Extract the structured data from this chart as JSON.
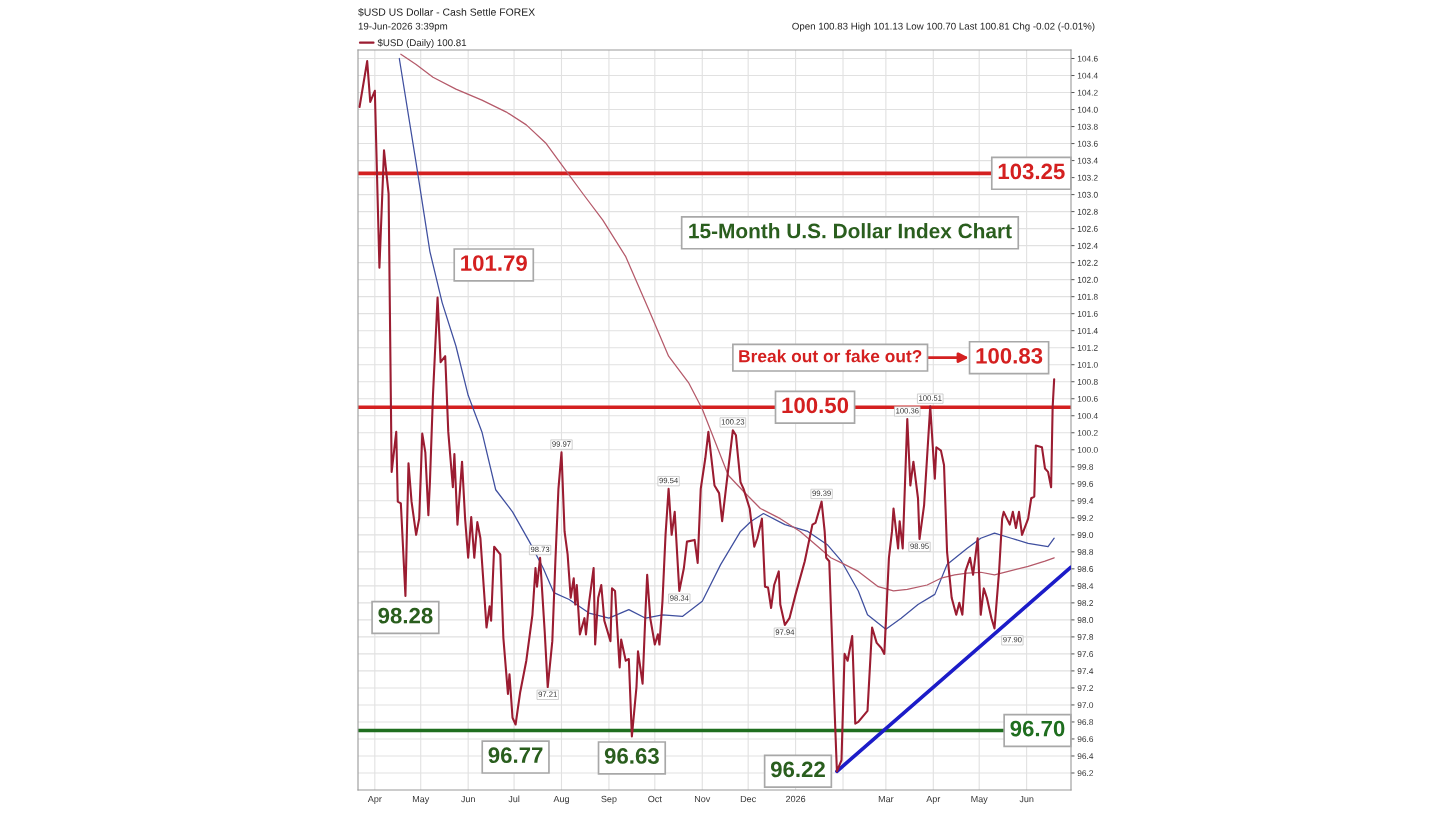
{
  "chart_data": {
    "type": "line",
    "title": "15-Month U.S. Dollar Index Chart",
    "subtitle": "$USD US Dollar - Cash Settle FOREX",
    "annotations": [
      "19-Jun-2026 3:39pm",
      "Open 100.83 High 101.13 Low 100.70 Last 100.81 Chg -0.02 (-0.01%)",
      "Break out or fake out?",
      {
        "text": "98.28",
        "x": "2025-04-21",
        "y": 98.28
      },
      {
        "text": "101.79",
        "x": "2025-05-12",
        "y": 101.79
      },
      {
        "text": "96.77",
        "x": "2025-07-02",
        "y": 96.77
      },
      {
        "text": "96.63",
        "x": "2025-09-16",
        "y": 96.63
      },
      {
        "text": "96.22",
        "x": "2026-01-28",
        "y": 96.22
      },
      {
        "text": "100.83",
        "x": "2026-06-19",
        "y": 100.83
      }
    ],
    "xlim": [
      "2025-03-21",
      "2026-06-30"
    ],
    "xticks": [
      {
        "value": "2025-04-01",
        "label": "Apr"
      },
      {
        "value": "2025-05-01",
        "label": "May"
      },
      {
        "value": "2025-06-01",
        "label": "Jun"
      },
      {
        "value": "2025-07-01",
        "label": "Jul"
      },
      {
        "value": "2025-08-01",
        "label": "Aug"
      },
      {
        "value": "2025-09-01",
        "label": "Sep"
      },
      {
        "value": "2025-10-01",
        "label": "Oct"
      },
      {
        "value": "2025-11-01",
        "label": "Nov"
      },
      {
        "value": "2025-12-01",
        "label": "Dec"
      },
      {
        "value": "2026-01-01",
        "label": "2026"
      },
      {
        "value": "2026-02-01",
        "label": null
      },
      {
        "value": "2026-03-01",
        "label": "Mar"
      },
      {
        "value": "2026-04-01",
        "label": "Apr"
      },
      {
        "value": "2026-05-01",
        "label": "May"
      },
      {
        "value": "2026-06-01",
        "label": "Jun"
      }
    ],
    "ylim": [
      96.0,
      104.7
    ],
    "yticks": [
      96.2,
      96.4,
      96.6,
      96.8,
      {
        "value": 97,
        "label": "97.0"
      },
      97.2,
      97.4,
      97.6,
      97.8,
      {
        "value": 98,
        "label": "98.0"
      },
      98.2,
      98.4,
      98.6,
      98.8,
      {
        "value": 99,
        "label": "99.0"
      },
      99.2,
      99.4,
      99.6,
      99.8,
      {
        "value": 100,
        "label": "100.0"
      },
      100.2,
      100.4,
      100.6,
      100.8,
      {
        "value": 101,
        "label": "101.0"
      },
      101.2,
      101.4,
      101.6,
      101.8,
      {
        "value": 102,
        "label": "102.0"
      },
      102.2,
      102.4,
      102.6,
      102.8,
      {
        "value": 103,
        "label": "103.0"
      },
      103.2,
      103.4,
      103.6,
      103.8,
      {
        "value": 104,
        "label": "104.0"
      },
      104.2,
      104.4,
      104.6
    ],
    "grid": true,
    "legend": "top left",
    "ref_lines": [
      {
        "axis": "y",
        "value": 103.25,
        "label": "103.25",
        "color": "#d42020"
      },
      {
        "axis": "y",
        "value": 100.5,
        "label": "100.50",
        "color": "#d42020"
      },
      {
        "axis": "y",
        "value": 96.7,
        "label": "96.70",
        "color": "#1f6e1f"
      }
    ],
    "series": [
      {
        "name": "$USD (Daily) 100.81",
        "color": "#9b1c31",
        "x": [
          "2025-03-22",
          "2025-03-27",
          "2025-03-29",
          "2025-04-01",
          "2025-04-04",
          "2025-04-07",
          "2025-04-10",
          "2025-04-12",
          "2025-04-15",
          "2025-04-16",
          "2025-04-18",
          "2025-04-21",
          "2025-04-23",
          "2025-04-25",
          "2025-04-28",
          "2025-04-30",
          "2025-05-02",
          "2025-05-04",
          "2025-05-06",
          "2025-05-07",
          "2025-05-09",
          "2025-05-12",
          "2025-05-14",
          "2025-05-17",
          "2025-05-19",
          "2025-05-22",
          "2025-05-23",
          "2025-05-25",
          "2025-05-28",
          "2025-05-30",
          "2025-06-01",
          "2025-06-03",
          "2025-06-05",
          "2025-06-07",
          "2025-06-09",
          "2025-06-13",
          "2025-06-15",
          "2025-06-16",
          "2025-06-18",
          "2025-06-22",
          "2025-06-24",
          "2025-06-27",
          "2025-06-28",
          "2025-06-30",
          "2025-07-02",
          "2025-07-05",
          "2025-07-09",
          "2025-07-13",
          "2025-07-15",
          "2025-07-16",
          "2025-07-18",
          "2025-07-21",
          "2025-07-23",
          "2025-07-26",
          "2025-07-28",
          "2025-07-30",
          "2025-08-01",
          "2025-08-03",
          "2025-08-05",
          "2025-08-07",
          "2025-08-09",
          "2025-08-10",
          "2025-08-11",
          "2025-08-13",
          "2025-08-16",
          "2025-08-17",
          "2025-08-19",
          "2025-08-22",
          "2025-08-23",
          "2025-08-25",
          "2025-08-27",
          "2025-08-29",
          "2025-09-02",
          "2025-09-03",
          "2025-09-05",
          "2025-09-08",
          "2025-09-09",
          "2025-09-12",
          "2025-09-14",
          "2025-09-16",
          "2025-09-19",
          "2025-09-20",
          "2025-09-23",
          "2025-09-25",
          "2025-09-26",
          "2025-09-28",
          "2025-10-01",
          "2025-10-03",
          "2025-10-04",
          "2025-10-06",
          "2025-10-08",
          "2025-10-10",
          "2025-10-12",
          "2025-10-14",
          "2025-10-17",
          "2025-10-20",
          "2025-10-22",
          "2025-10-27",
          "2025-10-29",
          "2025-10-31",
          "2025-11-03",
          "2025-11-05",
          "2025-11-09",
          "2025-11-12",
          "2025-11-14",
          "2025-11-16",
          "2025-11-21",
          "2025-11-23",
          "2025-11-26",
          "2025-11-28",
          "2025-12-02",
          "2025-12-05",
          "2025-12-07",
          "2025-12-10",
          "2025-12-12",
          "2025-12-14",
          "2025-12-16",
          "2025-12-18",
          "2025-12-21",
          "2025-12-22",
          "2025-12-25",
          "2025-12-28",
          "2026-01-01",
          "2026-01-07",
          "2026-01-12",
          "2026-01-14",
          "2026-01-18",
          "2026-01-20",
          "2026-01-21",
          "2026-01-23",
          "2026-01-26",
          "2026-01-28",
          "2026-01-31",
          "2026-02-02",
          "2026-02-04",
          "2026-02-07",
          "2026-02-09",
          "2026-02-11",
          "2026-02-17",
          "2026-02-20",
          "2026-02-23",
          "2026-02-26",
          "2026-02-28",
          "2026-03-03",
          "2026-03-05",
          "2026-03-06",
          "2026-03-09",
          "2026-03-10",
          "2026-03-12",
          "2026-03-15",
          "2026-03-17",
          "2026-03-19",
          "2026-03-22",
          "2026-03-23",
          "2026-03-26",
          "2026-03-30",
          "2026-04-02",
          "2026-04-03",
          "2026-04-06",
          "2026-04-08",
          "2026-04-10",
          "2026-04-13",
          "2026-04-16",
          "2026-04-18",
          "2026-04-20",
          "2026-04-22",
          "2026-04-25",
          "2026-04-27",
          "2026-04-30",
          "2026-05-02",
          "2026-05-04",
          "2026-05-06",
          "2026-05-09",
          "2026-05-11",
          "2026-05-14",
          "2026-05-16",
          "2026-05-17",
          "2026-05-21",
          "2026-05-23",
          "2026-05-25",
          "2026-05-27",
          "2026-05-29",
          "2026-06-02",
          "2026-06-04",
          "2026-06-06",
          "2026-06-07",
          "2026-06-11",
          "2026-06-13",
          "2026-06-15",
          "2026-06-17",
          "2026-06-18",
          "2026-06-19"
        ],
        "values": [
          104.03,
          104.57,
          104.09,
          104.22,
          102.14,
          103.52,
          103.01,
          99.74,
          100.21,
          99.39,
          99.37,
          98.28,
          99.84,
          99.39,
          99.0,
          99.19,
          100.19,
          99.97,
          99.23,
          99.62,
          100.64,
          101.79,
          101.03,
          101.1,
          100.21,
          99.56,
          99.95,
          99.12,
          99.86,
          99.19,
          98.73,
          99.21,
          98.73,
          99.15,
          98.96,
          97.91,
          98.16,
          97.99,
          98.86,
          98.77,
          97.79,
          97.13,
          97.36,
          96.85,
          96.77,
          97.15,
          97.52,
          98.06,
          98.61,
          98.39,
          98.73,
          97.87,
          97.21,
          97.75,
          98.69,
          99.54,
          99.97,
          99.04,
          98.77,
          98.26,
          98.49,
          98.18,
          98.41,
          97.83,
          98.02,
          97.83,
          98.2,
          98.61,
          97.71,
          98.26,
          98.41,
          97.99,
          97.75,
          98.37,
          98.34,
          97.44,
          97.77,
          97.52,
          97.54,
          96.63,
          97.21,
          97.63,
          97.25,
          98.14,
          98.53,
          98.02,
          97.71,
          97.83,
          97.71,
          98.22,
          99.0,
          99.54,
          99.0,
          99.27,
          98.34,
          98.61,
          98.92,
          98.94,
          98.67,
          99.54,
          99.9,
          100.21,
          99.58,
          99.49,
          99.16,
          99.47,
          100.23,
          100.17,
          99.62,
          99.54,
          99.31,
          98.86,
          98.96,
          99.19,
          98.39,
          98.38,
          98.14,
          98.41,
          98.57,
          98.18,
          97.94,
          98.02,
          98.3,
          98.69,
          99.12,
          99.14,
          99.39,
          99.04,
          98.73,
          98.69,
          97.17,
          96.22,
          96.35,
          97.6,
          97.52,
          97.81,
          96.78,
          96.8,
          96.93,
          97.91,
          97.73,
          97.67,
          97.6,
          98.73,
          99.04,
          99.31,
          98.84,
          99.16,
          98.84,
          100.36,
          99.58,
          99.86,
          99.43,
          98.95,
          99.35,
          100.51,
          99.66,
          100.03,
          99.99,
          99.82,
          98.8,
          98.26,
          98.06,
          98.2,
          98.06,
          98.57,
          98.73,
          98.53,
          98.96,
          98.06,
          98.37,
          98.26,
          98.02,
          97.9,
          98.57,
          99.19,
          99.27,
          99.12,
          99.27,
          99.08,
          99.27,
          99.0,
          99.19,
          99.43,
          99.45,
          100.05,
          100.03,
          99.78,
          99.74,
          99.56,
          100.5,
          100.83
        ],
        "value_labels": [
          null,
          null,
          null,
          null,
          null,
          null,
          null,
          null,
          null,
          null,
          null,
          null,
          null,
          null,
          null,
          null,
          null,
          null,
          null,
          null,
          null,
          null,
          null,
          null,
          null,
          null,
          null,
          null,
          null,
          null,
          null,
          null,
          null,
          null,
          null,
          null,
          null,
          null,
          null,
          null,
          null,
          null,
          null,
          null,
          null,
          null,
          null,
          null,
          null,
          null,
          "98.73",
          null,
          "97.21",
          null,
          null,
          null,
          "99.97",
          null,
          null,
          null,
          null,
          null,
          null,
          null,
          null,
          null,
          null,
          null,
          null,
          null,
          null,
          null,
          null,
          null,
          null,
          null,
          null,
          null,
          null,
          null,
          null,
          null,
          null,
          null,
          null,
          null,
          null,
          null,
          null,
          null,
          null,
          "99.54",
          null,
          null,
          "98.34",
          null,
          null,
          null,
          null,
          null,
          null,
          null,
          null,
          null,
          null,
          null,
          "100.23",
          null,
          null,
          null,
          null,
          null,
          null,
          null,
          null,
          null,
          null,
          null,
          null,
          null,
          "97.94",
          null,
          null,
          null,
          null,
          null,
          "99.39",
          null,
          null,
          null,
          null,
          null,
          null,
          null,
          null,
          null,
          null,
          null,
          null,
          null,
          null,
          null,
          null,
          null,
          null,
          null,
          null,
          null,
          null,
          "100.36",
          null,
          null,
          null,
          "98.95",
          null,
          "100.51",
          null,
          null,
          null,
          null,
          null,
          null,
          null,
          null,
          null,
          null,
          null,
          null,
          null,
          null,
          null,
          null,
          null,
          "97.90",
          null,
          null,
          null,
          null,
          null,
          null,
          null,
          null,
          null,
          null,
          null,
          null,
          null,
          null,
          null,
          null,
          null,
          null
        ]
      },
      {
        "color": "#3f4f9f",
        "x": [
          "2025-04-17",
          "2025-04-28",
          "2025-05-07",
          "2025-05-15",
          "2025-05-24",
          "2025-06-01",
          "2025-06-10",
          "2025-06-19",
          "2025-06-30",
          "2025-07-11",
          "2025-07-20",
          "2025-07-27",
          "2025-08-06",
          "2025-08-19",
          "2025-09-01",
          "2025-09-14",
          "2025-09-25",
          "2025-10-06",
          "2025-10-19",
          "2025-11-01",
          "2025-11-13",
          "2025-11-26",
          "2025-12-03",
          "2025-12-11",
          "2025-12-25",
          "2026-01-09",
          "2026-01-22",
          "2026-01-31",
          "2026-02-11",
          "2026-02-17",
          "2026-03-01",
          "2026-03-11",
          "2026-03-22",
          "2026-04-02",
          "2026-04-10",
          "2026-04-23",
          "2026-05-02",
          "2026-05-11",
          "2026-05-22",
          "2026-06-02",
          "2026-06-15",
          "2026-06-19"
        ],
        "values": [
          104.6,
          103.37,
          102.33,
          101.73,
          101.22,
          100.64,
          100.21,
          99.53,
          99.27,
          98.92,
          98.61,
          98.32,
          98.24,
          98.08,
          98.02,
          98.12,
          98.02,
          98.06,
          98.04,
          98.22,
          98.65,
          99.04,
          99.16,
          99.25,
          99.12,
          99.04,
          98.88,
          98.69,
          98.34,
          98.06,
          97.89,
          98.02,
          98.18,
          98.3,
          98.65,
          98.84,
          98.96,
          99.02,
          98.96,
          98.9,
          98.86,
          98.96
        ]
      },
      {
        "color": "#b55a6a",
        "x": [
          "2025-04-18",
          "2025-04-28",
          "2025-05-09",
          "2025-05-24",
          "2025-06-10",
          "2025-06-26",
          "2025-07-09",
          "2025-07-22",
          "2025-08-02",
          "2025-08-15",
          "2025-08-28",
          "2025-09-12",
          "2025-09-27",
          "2025-10-10",
          "2025-10-23",
          "2025-11-01",
          "2025-11-18",
          "2025-11-28",
          "2025-12-09",
          "2025-12-22",
          "2026-01-04",
          "2026-01-13",
          "2026-01-24",
          "2026-01-31",
          "2026-02-11",
          "2026-02-24",
          "2026-03-06",
          "2026-03-15",
          "2026-03-28",
          "2026-04-06",
          "2026-04-15",
          "2026-04-23",
          "2026-05-02",
          "2026-05-11",
          "2026-05-20",
          "2026-06-02",
          "2026-06-13",
          "2026-06-19"
        ],
        "values": [
          104.65,
          104.53,
          104.38,
          104.24,
          104.11,
          103.97,
          103.82,
          103.6,
          103.33,
          103.01,
          102.7,
          102.27,
          101.65,
          101.1,
          100.79,
          100.48,
          99.7,
          99.51,
          99.31,
          99.19,
          99.04,
          98.9,
          98.73,
          98.67,
          98.57,
          98.39,
          98.34,
          98.36,
          98.41,
          98.49,
          98.53,
          98.55,
          98.56,
          98.53,
          98.57,
          98.63,
          98.69,
          98.73
        ]
      },
      {
        "color": "#1c1cc8",
        "x": [
          "2026-01-28",
          "2026-06-30"
        ],
        "values": [
          96.22,
          98.62
        ]
      }
    ]
  }
}
